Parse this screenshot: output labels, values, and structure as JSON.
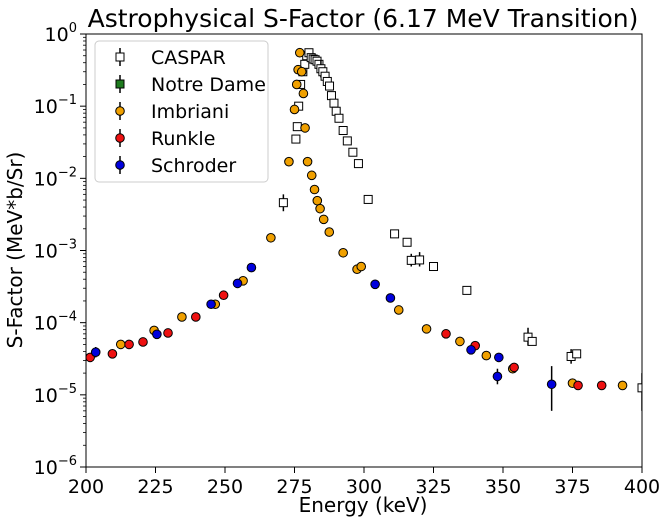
{
  "chart_data": {
    "type": "scatter",
    "title": "Astrophysical S-Factor (6.17 MeV Transition)",
    "xlabel": "Energy (keV)",
    "ylabel": "S-Factor (MeV*b/Sr)",
    "xlim": [
      200,
      400
    ],
    "ylim": [
      1e-06,
      1
    ],
    "yscale": "log",
    "xticks": [
      200,
      225,
      250,
      275,
      300,
      325,
      350,
      375,
      400
    ],
    "yticks": [
      {
        "value": 1e-06,
        "base": "10",
        "exp": "−6"
      },
      {
        "value": 1e-05,
        "base": "10",
        "exp": "−5"
      },
      {
        "value": 0.0001,
        "base": "10",
        "exp": "−4"
      },
      {
        "value": 0.001,
        "base": "10",
        "exp": "−3"
      },
      {
        "value": 0.01,
        "base": "10",
        "exp": "−2"
      },
      {
        "value": 0.1,
        "base": "10",
        "exp": "−1"
      },
      {
        "value": 1,
        "base": "10",
        "exp": "0"
      }
    ],
    "grid": false,
    "legend_position": "top-left",
    "series": [
      {
        "name": "CASPAR",
        "marker": "square",
        "color": "#ffffff",
        "points": [
          {
            "x": 271,
            "y": 0.0046,
            "ylo": 0.0035,
            "yhi": 0.006
          },
          {
            "x": 275.5,
            "y": 0.035
          },
          {
            "x": 276.0,
            "y": 0.052
          },
          {
            "x": 276.5,
            "y": 0.1
          },
          {
            "x": 277.2,
            "y": 0.2
          },
          {
            "x": 278.0,
            "y": 0.3
          },
          {
            "x": 278.7,
            "y": 0.38
          },
          {
            "x": 279.4,
            "y": 0.5
          },
          {
            "x": 280.2,
            "y": 0.55
          },
          {
            "x": 281.0,
            "y": 0.47
          },
          {
            "x": 281.7,
            "y": 0.45
          },
          {
            "x": 282.4,
            "y": 0.44
          },
          {
            "x": 283.1,
            "y": 0.42
          },
          {
            "x": 283.8,
            "y": 0.38
          },
          {
            "x": 284.5,
            "y": 0.33,
            "ylo": 0.25,
            "yhi": 0.43
          },
          {
            "x": 285.2,
            "y": 0.3
          },
          {
            "x": 286.0,
            "y": 0.26
          },
          {
            "x": 286.8,
            "y": 0.22
          },
          {
            "x": 287.6,
            "y": 0.19
          },
          {
            "x": 288.3,
            "y": 0.14
          },
          {
            "x": 289.2,
            "y": 0.11
          },
          {
            "x": 290.0,
            "y": 0.085
          },
          {
            "x": 291.0,
            "y": 0.068
          },
          {
            "x": 292.5,
            "y": 0.046
          },
          {
            "x": 294.0,
            "y": 0.033
          },
          {
            "x": 296.0,
            "y": 0.023
          },
          {
            "x": 298.0,
            "y": 0.016
          },
          {
            "x": 301.5,
            "y": 0.0051
          },
          {
            "x": 311.0,
            "y": 0.0017
          },
          {
            "x": 315.5,
            "y": 0.0013
          },
          {
            "x": 317.0,
            "y": 0.00073,
            "ylo": 0.0006,
            "yhi": 0.0009
          },
          {
            "x": 320.0,
            "y": 0.00074,
            "ylo": 0.0006,
            "yhi": 0.00095
          },
          {
            "x": 325.0,
            "y": 0.0006
          },
          {
            "x": 337.0,
            "y": 0.00028
          },
          {
            "x": 359.0,
            "y": 6.3e-05,
            "ylo": 4.8e-05,
            "yhi": 8.5e-05
          },
          {
            "x": 360.5,
            "y": 5.5e-05
          },
          {
            "x": 374.5,
            "y": 3.4e-05,
            "ylo": 2.7e-05,
            "yhi": 4.3e-05
          },
          {
            "x": 376.5,
            "y": 3.7e-05
          },
          {
            "x": 400.0,
            "y": 1.25e-05,
            "ylo": 6e-06,
            "yhi": 2e-05
          }
        ]
      },
      {
        "name": "Notre Dame",
        "marker": "square",
        "color": "#1e7b1e",
        "points": []
      },
      {
        "name": "Imbriani",
        "marker": "circle",
        "color": "#f0a000",
        "points": [
          {
            "x": 212.5,
            "y": 5e-05
          },
          {
            "x": 224.5,
            "y": 7.8e-05
          },
          {
            "x": 234.5,
            "y": 0.00012
          },
          {
            "x": 246.5,
            "y": 0.00018
          },
          {
            "x": 256.5,
            "y": 0.00038
          },
          {
            "x": 266.5,
            "y": 0.0015
          },
          {
            "x": 273.0,
            "y": 0.017
          },
          {
            "x": 275.0,
            "y": 0.09
          },
          {
            "x": 275.8,
            "y": 0.2
          },
          {
            "x": 276.3,
            "y": 0.32
          },
          {
            "x": 276.9,
            "y": 0.55
          },
          {
            "x": 277.6,
            "y": 0.3
          },
          {
            "x": 278.2,
            "y": 0.15
          },
          {
            "x": 278.8,
            "y": 0.05
          },
          {
            "x": 279.7,
            "y": 0.017
          },
          {
            "x": 281.2,
            "y": 0.011
          },
          {
            "x": 282.2,
            "y": 0.007
          },
          {
            "x": 283.2,
            "y": 0.0049
          },
          {
            "x": 284.2,
            "y": 0.0038
          },
          {
            "x": 285.5,
            "y": 0.0027
          },
          {
            "x": 287.5,
            "y": 0.0018
          },
          {
            "x": 292.5,
            "y": 0.00093
          },
          {
            "x": 297.5,
            "y": 0.00055
          },
          {
            "x": 299.0,
            "y": 0.0006
          },
          {
            "x": 312.5,
            "y": 0.00015
          },
          {
            "x": 322.5,
            "y": 8.2e-05
          },
          {
            "x": 334.5,
            "y": 5.5e-05
          },
          {
            "x": 344.0,
            "y": 3.5e-05
          },
          {
            "x": 353.5,
            "y": 2.3e-05
          },
          {
            "x": 375.0,
            "y": 1.45e-05
          },
          {
            "x": 393.0,
            "y": 1.35e-05
          }
        ]
      },
      {
        "name": "Runkle",
        "marker": "circle",
        "color": "#ee1111",
        "points": [
          {
            "x": 201.5,
            "y": 3.3e-05
          },
          {
            "x": 209.5,
            "y": 3.7e-05
          },
          {
            "x": 215.5,
            "y": 5e-05
          },
          {
            "x": 220.5,
            "y": 5.4e-05
          },
          {
            "x": 229.5,
            "y": 7.2e-05
          },
          {
            "x": 239.5,
            "y": 0.00012
          },
          {
            "x": 249.5,
            "y": 0.00024
          },
          {
            "x": 329.5,
            "y": 7e-05
          },
          {
            "x": 340.0,
            "y": 4.8e-05
          },
          {
            "x": 354.0,
            "y": 2.4e-05
          },
          {
            "x": 377.0,
            "y": 1.35e-05
          },
          {
            "x": 385.5,
            "y": 1.35e-05
          }
        ]
      },
      {
        "name": "Schroder",
        "marker": "circle",
        "color": "#0000dd",
        "points": [
          {
            "x": 203.5,
            "y": 3.9e-05,
            "ylo": 3.3e-05,
            "yhi": 4.6e-05
          },
          {
            "x": 225.5,
            "y": 6.9e-05
          },
          {
            "x": 245.0,
            "y": 0.00018
          },
          {
            "x": 254.5,
            "y": 0.00035
          },
          {
            "x": 259.5,
            "y": 0.00058
          },
          {
            "x": 304.0,
            "y": 0.00034
          },
          {
            "x": 309.5,
            "y": 0.00022
          },
          {
            "x": 338.5,
            "y": 4.2e-05
          },
          {
            "x": 348.0,
            "y": 1.8e-05,
            "ylo": 1.4e-05,
            "yhi": 2.3e-05
          },
          {
            "x": 348.5,
            "y": 3.3e-05
          },
          {
            "x": 367.5,
            "y": 1.4e-05,
            "ylo": 6e-06,
            "yhi": 2.5e-05
          }
        ]
      }
    ]
  }
}
